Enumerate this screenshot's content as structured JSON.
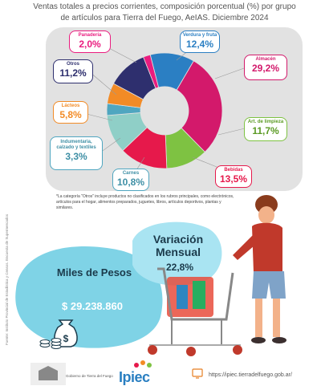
{
  "header": {
    "title_line1": "Ventas totales a precios corrientes, composición porcentual (%) por grupo",
    "title_line2": "de artículos para Tierra del Fuego, AeIAS. Diciembre  2024"
  },
  "chart_data": {
    "type": "pie",
    "title": "Ventas totales a precios corrientes, composición porcentual (%) por grupo de artículos para Tierra del Fuego, AeIAS. Diciembre 2024",
    "slices": [
      {
        "label": "Verdura y fruta",
        "display": "12,4%",
        "value": 12.4,
        "color": "#2b7fc3"
      },
      {
        "label": "Almacén",
        "display": "29,2%",
        "value": 29.2,
        "color": "#d3196b"
      },
      {
        "label": "Art. de limpieza",
        "display": "11,7%",
        "value": 11.7,
        "color": "#7ec242"
      },
      {
        "label": "Bebidas",
        "display": "13,5%",
        "value": 13.5,
        "color": "#e6194b"
      },
      {
        "label": "Carnes",
        "display": "10,8%",
        "value": 10.8,
        "color": "#8fcfc7"
      },
      {
        "label": "Indumentaria, calzado y textiles",
        "display": "3,3%",
        "value": 3.3,
        "color": "#4fa6c0"
      },
      {
        "label": "Lácteos",
        "display": "5,8%",
        "value": 5.8,
        "color": "#f28b26"
      },
      {
        "label": "Otros",
        "display": "11,2%",
        "value": 11.2,
        "color": "#2e2f6e"
      },
      {
        "label": "Panadería",
        "display": "2,0%",
        "value": 2.0,
        "color": "#ea1c7f"
      }
    ]
  },
  "labels": {
    "verdura_name": "Verdura y fruta",
    "verdura_val": "12,4%",
    "almacen_name": "Almacén",
    "almacen_val": "29,2%",
    "limpieza_name": "Art. de limpieza",
    "limpieza_val": "11,7%",
    "bebidas_name": "Bebidas",
    "bebidas_val": "13,5%",
    "carnes_name": "Carnes",
    "carnes_val": "10,8%",
    "indumentaria_name": "Indumentaria, calzado y textiles",
    "indumentaria_val": "3,3%",
    "lacteos_name": "Lácteos",
    "lacteos_val": "5,8%",
    "otros_name": "Otros",
    "otros_val": "11,2%",
    "panaderia_name": "Panadería",
    "panaderia_val": "2,0%"
  },
  "footnote": "*La categoría \"Otros\" incluye productos no clasificados en los rubros principales, como electrónicos, artículos para el hogar, alimentos preparados, juguetes, libros, artículos deportivos, plantas y similares.",
  "source": "Fuente: Instituto Provincial de Estadística y Censos. Encuesta de Supermercados",
  "variacion": {
    "title": "Variación Mensual",
    "value": "22,8%"
  },
  "miles": {
    "title": "Miles de Pesos",
    "value": "$ 29.238.860"
  },
  "footer": {
    "url": "https://ipiec.tierradelfuego.gob.ar/",
    "logo": "Ipiec",
    "gov": "Gobierno de Tierra del Fuego"
  },
  "colors": {
    "dark_blue": "#1b3a4b",
    "teal_blob": "#6fd0e8",
    "light_blob": "#a9e4f2"
  },
  "icons": [
    "money-bag-icon",
    "coins-icon",
    "shopping-cart-icon",
    "web-icon",
    "person-illustration"
  ]
}
